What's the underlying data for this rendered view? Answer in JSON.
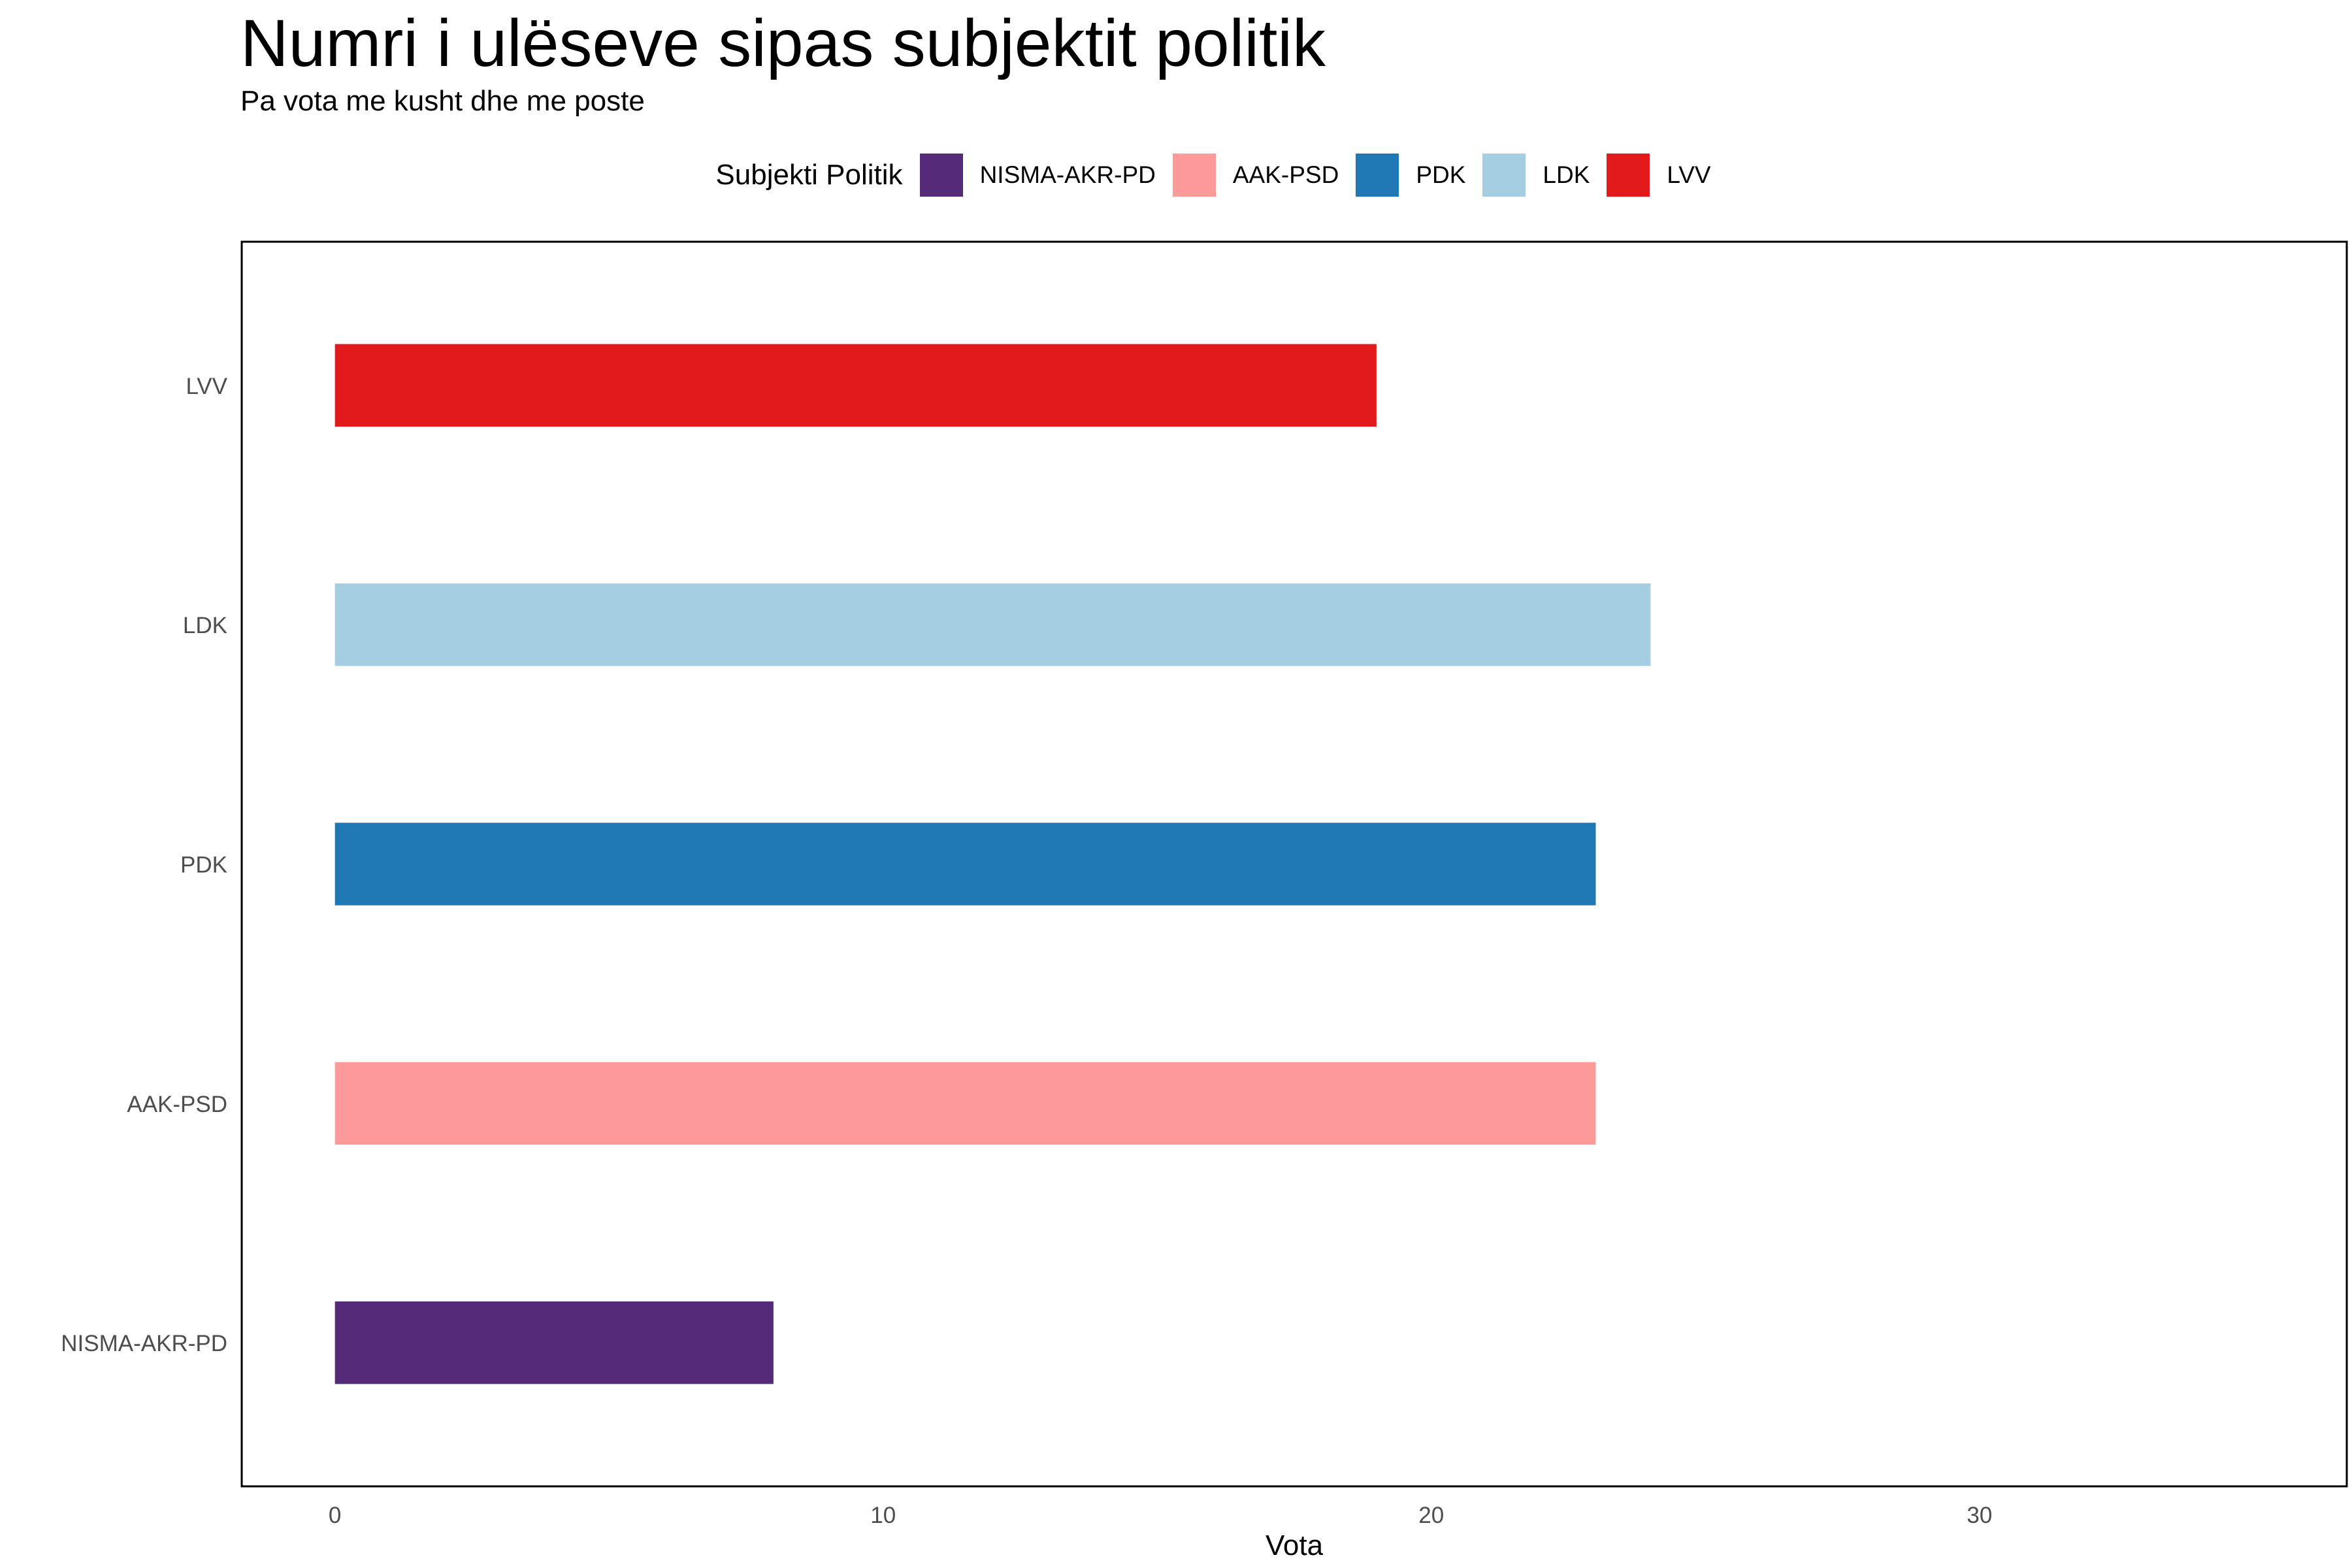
{
  "title": "Numri i ulëseve sipas subjektit politik",
  "subtitle": "Pa vota me kusht dhe me poste",
  "legend": {
    "title": "Subjekti Politik",
    "items": [
      {
        "label": "NISMA-AKR-PD",
        "color": "#552A78"
      },
      {
        "label": "AAK-PSD",
        "color": "#FB9A99"
      },
      {
        "label": "PDK",
        "color": "#1F78B4"
      },
      {
        "label": "LDK",
        "color": "#A6CEE3"
      },
      {
        "label": "LVV",
        "color": "#E31A1C"
      }
    ]
  },
  "chart_data": {
    "type": "bar",
    "orientation": "horizontal",
    "categories": [
      "LVV",
      "LDK",
      "PDK",
      "AAK-PSD",
      "NISMA-AKR-PD"
    ],
    "values": [
      19,
      24,
      23,
      23,
      8
    ],
    "colors": [
      "#E31A1C",
      "#A6CEE3",
      "#1F78B4",
      "#FB9A99",
      "#552A78"
    ],
    "xlabel": "Vota",
    "ylabel": "",
    "xlim": [
      -1.7,
      36.7
    ],
    "xticks": [
      0,
      10,
      20,
      30
    ],
    "xtick_labels": [
      "0",
      "10",
      "20",
      "30"
    ],
    "grid": false,
    "legend_position": "top"
  }
}
